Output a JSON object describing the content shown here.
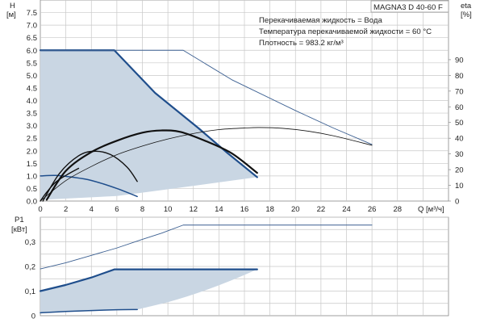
{
  "model_label": "MAGNA3 D 40-60 F",
  "info_lines": [
    "Перекачиваемая жидкость = Вода",
    "Температура перекачиваемой жидкости = 60 °C",
    "Плотность = 983.2 кг/м³"
  ],
  "colors": {
    "grid": "#c8c8c8",
    "area": "#c9d6e3",
    "curve_dark_blue": "#1f4e8c",
    "curve_thin_blue": "#3b5f91",
    "curve_black": "#111111"
  },
  "chart_data": [
    {
      "type": "line",
      "xlabel": "Q [м³/ч]",
      "ylabel_left": [
        "H",
        "[м]"
      ],
      "ylabel_right": [
        "eta",
        "[%]"
      ],
      "x_ticks": [
        "0",
        "2",
        "4",
        "6",
        "8",
        "10",
        "12",
        "14",
        "16",
        "18",
        "20",
        "22",
        "24",
        "26",
        "28"
      ],
      "y_ticks_left": [
        "0.0",
        "0.5",
        "1.0",
        "1.5",
        "2.0",
        "2.5",
        "3.0",
        "3.5",
        "4.0",
        "4.5",
        "5.0",
        "5.5",
        "6.0",
        "6.5",
        "7.0",
        "7.5"
      ],
      "y_ticks_right": [
        "0",
        "10",
        "20",
        "30",
        "40",
        "50",
        "60",
        "70",
        "80",
        "90"
      ],
      "xlim": [
        0,
        32
      ],
      "ylim": [
        0,
        8
      ],
      "eta_lim": [
        0,
        128
      ],
      "grid": true,
      "operating_area": [
        [
          0,
          6.0
        ],
        [
          5.8,
          6.0
        ],
        [
          17.0,
          0.95
        ],
        [
          0,
          0.05
        ]
      ],
      "series": [
        {
          "style": "dark-blue-thick",
          "axis": "H",
          "values": [
            [
              0,
              6.0
            ],
            [
              5.8,
              6.0
            ],
            [
              9,
              4.3
            ],
            [
              12.4,
              2.9
            ],
            [
              14.7,
              1.9
            ],
            [
              17.0,
              0.95
            ]
          ]
        },
        {
          "style": "dark-blue-thin",
          "axis": "H",
          "values": [
            [
              0,
              6.0
            ],
            [
              11.2,
              6.0
            ],
            [
              15,
              4.83
            ],
            [
              20,
              3.6
            ],
            [
              23,
              2.9
            ],
            [
              26,
              2.25
            ]
          ]
        },
        {
          "style": "dark-blue-medium",
          "axis": "H",
          "values": [
            [
              0,
              1.0
            ],
            [
              1.2,
              1.02
            ],
            [
              2.5,
              0.95
            ],
            [
              4,
              0.82
            ],
            [
              6,
              0.5
            ],
            [
              7.6,
              0.18
            ]
          ]
        },
        {
          "style": "black-thick",
          "axis": "H",
          "values": [
            [
              0.5,
              0.05
            ],
            [
              2,
              1.2
            ],
            [
              4,
              1.95
            ],
            [
              6,
              2.4
            ],
            [
              8,
              2.72
            ],
            [
              9.5,
              2.81
            ],
            [
              11,
              2.75
            ],
            [
              13,
              2.38
            ],
            [
              15,
              1.9
            ],
            [
              17,
              1.12
            ]
          ]
        },
        {
          "style": "black-medium",
          "axis": "H",
          "values": [
            [
              0.2,
              0.0
            ],
            [
              1.5,
              1.1
            ],
            [
              3,
              1.8
            ],
            [
              4.2,
              1.98
            ],
            [
              5.5,
              1.85
            ],
            [
              6.8,
              1.35
            ],
            [
              7.6,
              0.78
            ]
          ]
        },
        {
          "style": "black-thin",
          "axis": "eta",
          "values": [
            [
              0,
              0
            ],
            [
              2,
              13
            ],
            [
              4,
              22
            ],
            [
              6,
              29.5
            ],
            [
              8,
              35
            ],
            [
              10,
              39.5
            ],
            [
              12,
              43
            ],
            [
              14,
              45.5
            ],
            [
              16,
              46.5
            ],
            [
              17.2,
              46.8
            ],
            [
              19,
              46.3
            ],
            [
              21,
              44.5
            ],
            [
              23,
              41.5
            ],
            [
              26,
              35.5
            ]
          ]
        },
        {
          "style": "black-medium",
          "axis": "H",
          "values": [
            [
              0,
              0
            ],
            [
              0.5,
              0.35
            ],
            [
              1.2,
              0.75
            ],
            [
              2.1,
              1.05
            ],
            [
              3.0,
              1.3
            ]
          ]
        }
      ]
    },
    {
      "type": "line",
      "xlabel": "",
      "ylabel_left": [
        "P1",
        "[кВт]"
      ],
      "y_ticks_left": [
        "0",
        "0,1",
        "0,2",
        "0,3"
      ],
      "xlim": [
        0,
        32
      ],
      "ylim": [
        0,
        0.4
      ],
      "grid": true,
      "operating_area": [
        [
          0,
          0.1
        ],
        [
          5.8,
          0.188
        ],
        [
          17.0,
          0.188
        ],
        [
          13.2,
          0.1
        ],
        [
          10.0,
          0.055
        ],
        [
          7.6,
          0.025
        ],
        [
          0,
          0.012
        ]
      ],
      "series": [
        {
          "style": "dark-blue-thin",
          "values": [
            [
              0,
              0.19
            ],
            [
              2,
              0.215
            ],
            [
              4,
              0.245
            ],
            [
              6,
              0.275
            ],
            [
              8,
              0.31
            ],
            [
              9.5,
              0.335
            ],
            [
              11.2,
              0.368
            ],
            [
              26,
              0.368
            ]
          ]
        },
        {
          "style": "dark-blue-thick",
          "values": [
            [
              0,
              0.1
            ],
            [
              2,
              0.125
            ],
            [
              4,
              0.155
            ],
            [
              5.8,
              0.188
            ],
            [
              17.0,
              0.188
            ]
          ]
        },
        {
          "style": "dark-blue-medium",
          "values": [
            [
              0,
              0.012
            ],
            [
              2,
              0.017
            ],
            [
              4,
              0.021
            ],
            [
              6,
              0.024
            ],
            [
              7.6,
              0.025
            ]
          ]
        }
      ]
    }
  ]
}
